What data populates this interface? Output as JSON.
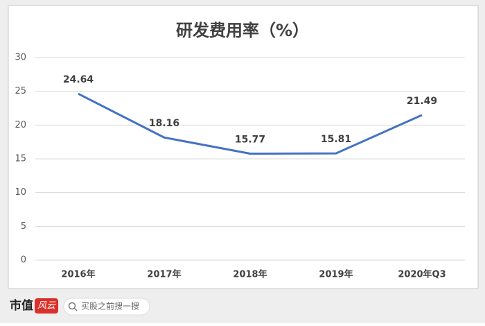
{
  "chart_data": {
    "type": "line",
    "title": "研发费用率（%）",
    "categories": [
      "2016年",
      "2017年",
      "2018年",
      "2019年",
      "2020年Q3"
    ],
    "series": [
      {
        "name": "研发费用率",
        "color": "#4472c4",
        "values": [
          24.64,
          18.16,
          15.77,
          15.81,
          21.49
        ]
      }
    ],
    "ylim": [
      0,
      30
    ],
    "yticks": [
      0,
      5,
      10,
      15,
      20,
      25,
      30
    ],
    "grid": true
  },
  "footer": {
    "brand": "市值",
    "brand_logo": "风云",
    "search": "买股之前搜一搜"
  }
}
